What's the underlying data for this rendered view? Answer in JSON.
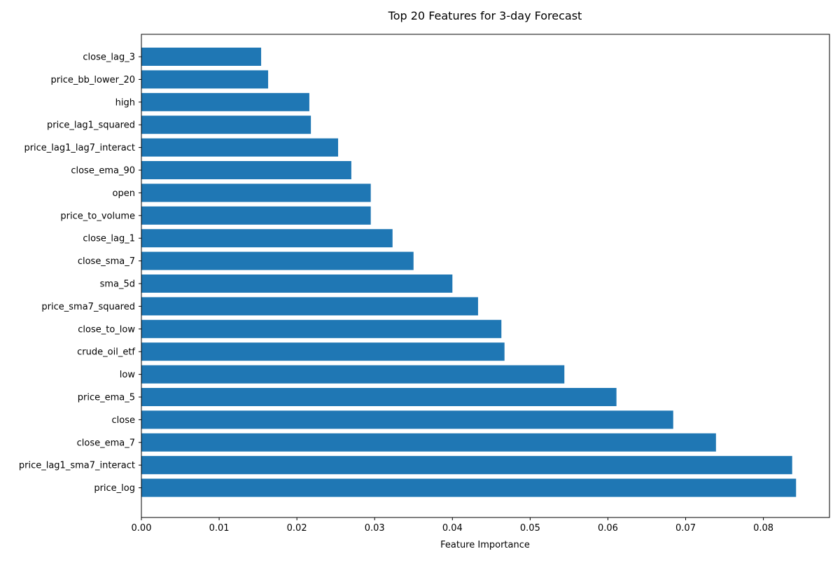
{
  "chart_data": {
    "type": "bar",
    "orientation": "horizontal",
    "title": "Top 20 Features for 3-day Forecast",
    "xlabel": "Feature Importance",
    "ylabel": "",
    "xlim": [
      0,
      0.0885
    ],
    "xticks": [
      0.0,
      0.01,
      0.02,
      0.03,
      0.04,
      0.05,
      0.06,
      0.07,
      0.08
    ],
    "xtick_labels": [
      "0.00",
      "0.01",
      "0.02",
      "0.03",
      "0.04",
      "0.05",
      "0.06",
      "0.07",
      "0.08"
    ],
    "grid": false,
    "bar_color": "#1f77b4",
    "categories": [
      "close_lag_3",
      "price_bb_lower_20",
      "high",
      "price_lag1_squared",
      "price_lag1_lag7_interact",
      "close_ema_90",
      "open",
      "price_to_volume",
      "close_lag_1",
      "close_sma_7",
      "sma_5d",
      "price_sma7_squared",
      "close_to_low",
      "crude_oil_etf",
      "low",
      "price_ema_5",
      "close",
      "close_ema_7",
      "price_lag1_sma7_interact",
      "price_log"
    ],
    "values": [
      0.0154,
      0.0163,
      0.0216,
      0.0218,
      0.0253,
      0.027,
      0.0295,
      0.0295,
      0.0323,
      0.035,
      0.04,
      0.0433,
      0.0463,
      0.0467,
      0.0544,
      0.0611,
      0.0684,
      0.0739,
      0.0837,
      0.0842
    ]
  }
}
